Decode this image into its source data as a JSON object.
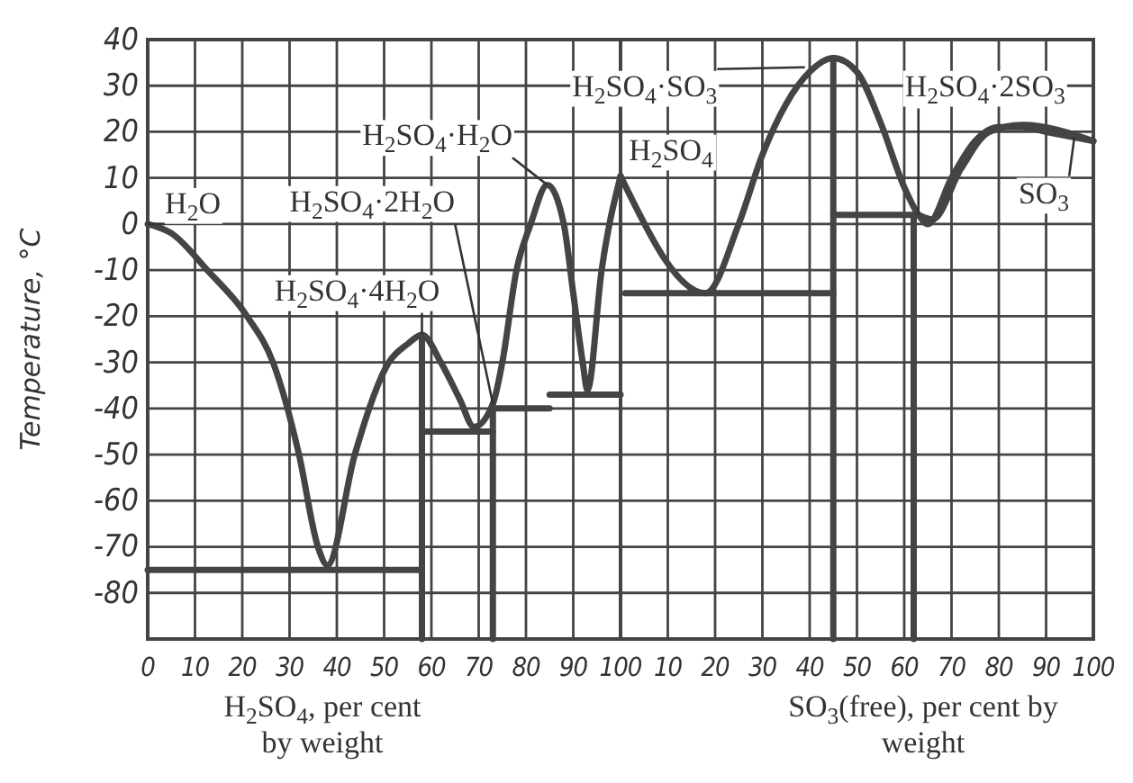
{
  "chart_data": [
    {
      "type": "line",
      "ylabel": "Temperature, °C",
      "xlabel": "H$_{2}$SO$_{4}$, per cent by weight",
      "xlim": [
        0,
        100
      ],
      "ylim": [
        -90,
        40
      ],
      "xticks": [
        0,
        10,
        20,
        30,
        40,
        50,
        60,
        70,
        80,
        90,
        100
      ],
      "yticks": [
        -80,
        -70,
        -60,
        -50,
        -40,
        -30,
        -20,
        -10,
        0,
        10,
        20,
        30,
        40
      ],
      "grid": true,
      "marker": "none",
      "line_style": "solid",
      "series": [
        {
          "color": "#444444",
          "x": [
            0,
            5,
            12.6,
            21,
            26.5,
            32,
            36,
            38,
            43.8,
            51,
            55,
            58,
            62,
            66,
            69,
            73,
            75,
            78,
            81,
            84.5,
            88,
            90,
            92,
            93,
            96,
            100
          ],
          "values": [
            0,
            -2,
            -10,
            -20,
            -30,
            -50,
            -70,
            -74,
            -50,
            -30,
            -26,
            -24,
            -30,
            -38,
            -44,
            -39,
            -30,
            -10,
            0,
            8.5,
            0,
            -15,
            -30,
            -36,
            -10,
            10.4
          ]
        },
        {
          "color": "#444444",
          "x": [
            0,
            58
          ],
          "values": [
            -75,
            -75
          ]
        },
        {
          "color": "#444444",
          "x": [
            58,
            73
          ],
          "values": [
            -45,
            -45
          ]
        },
        {
          "color": "#444444",
          "x": [
            73,
            85
          ],
          "values": [
            -40,
            -40
          ]
        },
        {
          "color": "#444444",
          "x": [
            85,
            100
          ],
          "values": [
            -37,
            -37
          ]
        },
        {
          "color": "#444444",
          "x": [
            58,
            58
          ],
          "values": [
            -24,
            -90
          ]
        },
        {
          "color": "#444444",
          "x": [
            73,
            73
          ],
          "values": [
            -39,
            -90
          ]
        }
      ],
      "annotations": [
        {
          "text": "H$_{2}$O",
          "x": 0,
          "y": 0
        },
        {
          "text": "H$_{2}$SO$_{4}$·2H$_{2}$O",
          "x": 73,
          "y": -39
        },
        {
          "text": "H$_{2}$SO$_{4}$·4H$_{2}$O",
          "x": 58,
          "y": -24
        },
        {
          "text": "H$_{2}$SO$_{4}$·H$_{2}$O",
          "x": 84.5,
          "y": 8.5
        },
        {
          "text": "H$_{2}$SO$_{4}$",
          "x": 100,
          "y": 10.4
        }
      ]
    },
    {
      "type": "line",
      "xlabel": "SO$_{3}$(free), per cent by weight",
      "xlim": [
        0,
        100
      ],
      "ylim": [
        -90,
        40
      ],
      "xticks": [
        {
          "value": 0,
          "label": null
        },
        10,
        20,
        30,
        40,
        50,
        60,
        70,
        80,
        90,
        100
      ],
      "yticks": [
        -80,
        -70,
        -60,
        -50,
        -40,
        -30,
        -20,
        -10,
        0,
        10,
        20,
        30,
        40
      ],
      "tick_labels": "x",
      "grid": true,
      "marker": "none",
      "line_style": "solid",
      "series": [
        {
          "color": "#444444",
          "x": [
            0,
            18,
            25,
            30,
            35,
            40,
            45,
            50,
            55,
            60,
            63,
            65,
            70,
            75,
            80,
            85,
            90,
            100
          ],
          "values": [
            10.4,
            -15,
            0,
            15,
            26,
            33,
            36,
            33,
            22,
            8,
            2,
            0,
            10,
            18,
            21,
            21,
            20,
            18
          ]
        },
        {
          "color": "#444444",
          "x": [
            63,
            66,
            72,
            78,
            85,
            100
          ],
          "values": [
            2,
            1,
            12,
            20,
            21.5,
            18
          ]
        },
        {
          "color": "#444444",
          "x": [
            1,
            45
          ],
          "values": [
            -15,
            -15
          ]
        },
        {
          "color": "#444444",
          "x": [
            45,
            62
          ],
          "values": [
            2,
            2
          ]
        },
        {
          "color": "#444444",
          "x": [
            45,
            45
          ],
          "values": [
            36,
            -90
          ]
        },
        {
          "color": "#444444",
          "x": [
            62,
            62
          ],
          "values": [
            2,
            -90
          ]
        }
      ],
      "annotations": [
        {
          "text": "H$_{2}$SO$_{4}$·SO$_{3}$",
          "x": 39,
          "y": 34
        },
        {
          "text": "H$_{2}$SO$_{4}$·2SO$_{3}$",
          "x": 63,
          "y": 2
        },
        {
          "text": "SO$_{3}$",
          "x": 96,
          "y": 19
        }
      ]
    }
  ]
}
